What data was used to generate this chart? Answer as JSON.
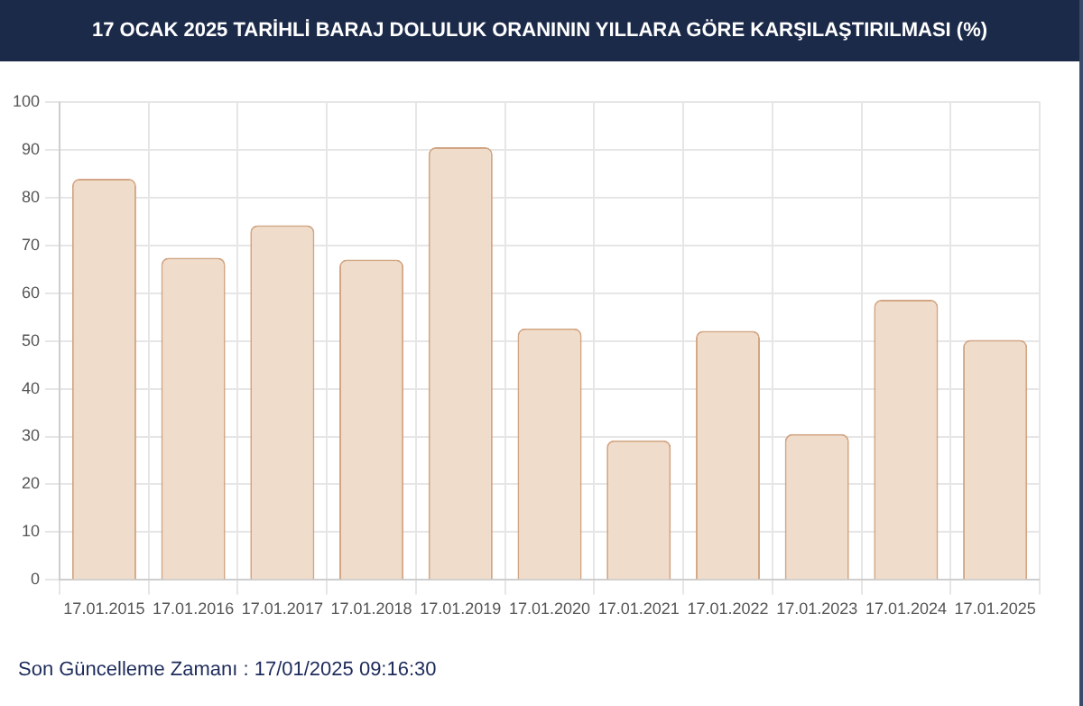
{
  "chart_data": {
    "type": "bar",
    "title": "17 OCAK 2025 TARİHLİ BARAJ DOLULUK ORANININ YILLARA GÖRE KARŞILAŞTIRILMASI (%)",
    "categories": [
      "17.01.2015",
      "17.01.2016",
      "17.01.2017",
      "17.01.2018",
      "17.01.2019",
      "17.01.2020",
      "17.01.2021",
      "17.01.2022",
      "17.01.2023",
      "17.01.2024",
      "17.01.2025"
    ],
    "values": [
      83.9,
      67.4,
      74.2,
      67.0,
      90.5,
      52.6,
      29.2,
      52.1,
      30.5,
      58.6,
      50.2
    ],
    "color": "#f0dcca",
    "ylim": [
      0,
      100
    ],
    "yticks": [
      0,
      10,
      20,
      30,
      40,
      50,
      60,
      70,
      80,
      90,
      100
    ],
    "grid": true,
    "legend": false,
    "annotations": [
      "Son Güncelleme Zamanı : 17/01/2025 09:16:30"
    ]
  }
}
